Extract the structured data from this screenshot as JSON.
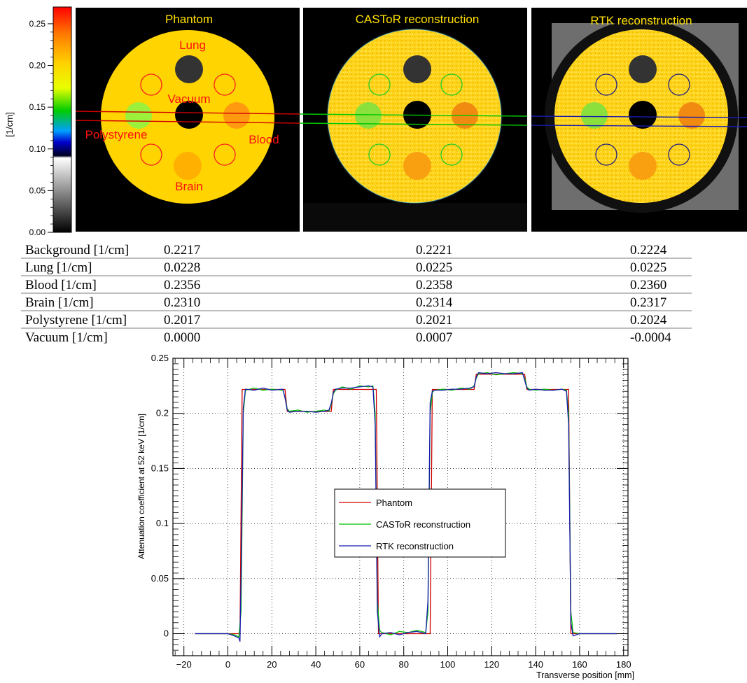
{
  "colorbar": {
    "label": "[1/cm]",
    "ticks": [
      "0.25",
      "0.20",
      "0.15",
      "0.10",
      "0.05",
      "0.00"
    ],
    "tick_values": [
      0.25,
      0.2,
      0.15,
      0.1,
      0.05,
      0.0
    ]
  },
  "panels": [
    {
      "title": "Phantom",
      "labels": {
        "lung": "Lung",
        "vacuum": "Vacuum",
        "polystyrene": "Polystyrene",
        "blood": "Blood",
        "brain": "Brain"
      },
      "ring_color": "#ff2020",
      "line_color": "#d00000"
    },
    {
      "title": "CASToR reconstruction",
      "ring_color": "#22cc22",
      "line_color": "#00c800"
    },
    {
      "title": "RTK reconstruction",
      "ring_color": "#202080",
      "line_color": "#1a1ab0"
    }
  ],
  "table": {
    "rows": [
      {
        "label": "Background [1/cm]",
        "values": [
          "0.2217",
          "0.2221",
          "0.2224"
        ]
      },
      {
        "label": "Lung [1/cm]",
        "values": [
          "0.0228",
          "0.0225",
          "0.0225"
        ]
      },
      {
        "label": "Blood [1/cm]",
        "values": [
          "0.2356",
          "0.2358",
          "0.2360"
        ]
      },
      {
        "label": "Brain [1/cm]",
        "values": [
          "0.2310",
          "0.2314",
          "0.2317"
        ]
      },
      {
        "label": "Polystyrene [1/cm]",
        "values": [
          "0.2017",
          "0.2021",
          "0.2024"
        ]
      },
      {
        "label": "Vacuum [1/cm]",
        "values": [
          "0.0000",
          "0.0007",
          "-0.0004"
        ]
      }
    ]
  },
  "chart_data": {
    "type": "line",
    "xlabel": "Transverse position [mm]",
    "ylabel": "Attenuation coefficient at 52 keV [1/cm]",
    "xlim": [
      -25,
      182
    ],
    "ylim": [
      -0.02,
      0.25
    ],
    "xticks": [
      -20,
      0,
      20,
      40,
      60,
      80,
      100,
      120,
      140,
      160,
      180
    ],
    "xtick_labels": [
      "−20",
      "0",
      "20",
      "40",
      "60",
      "80",
      "100",
      "120",
      "140",
      "160",
      "180"
    ],
    "yticks": [
      0,
      0.05,
      0.1,
      0.15,
      0.2,
      0.25
    ],
    "ytick_labels": [
      "0",
      "0.05",
      "0.1",
      "0.15",
      "0.2",
      "0.25"
    ],
    "grid": true,
    "legend_position": "center",
    "series": [
      {
        "name": "Phantom",
        "color": "#d00000",
        "x": [
          -15,
          5.5,
          6.5,
          26,
          27,
          47,
          48,
          67.5,
          68.5,
          92,
          93,
          112,
          113,
          135,
          136,
          155,
          156,
          177
        ],
        "y": [
          0,
          0,
          0.2217,
          0.2217,
          0.2017,
          0.2017,
          0.2217,
          0.2217,
          0,
          0,
          0.2217,
          0.2217,
          0.2356,
          0.2356,
          0.2217,
          0.2217,
          0,
          0
        ]
      },
      {
        "name": "CASToR reconstruction",
        "color": "#00c000",
        "x": [
          -15,
          0,
          3,
          5,
          6,
          7,
          8,
          12,
          16,
          20,
          25,
          26,
          27,
          28,
          32,
          36,
          40,
          44,
          46,
          47,
          48,
          49,
          52,
          56,
          60,
          64,
          66,
          67,
          68,
          69,
          70,
          74,
          78,
          82,
          86,
          90,
          91,
          92,
          93,
          94,
          98,
          102,
          106,
          110,
          112,
          113,
          114,
          118,
          122,
          126,
          130,
          134,
          135,
          136,
          137,
          140,
          144,
          148,
          152,
          154,
          155,
          156,
          157,
          160,
          165,
          170,
          177
        ],
        "y": [
          0,
          0,
          -0.001,
          -0.003,
          0.02,
          0.2,
          0.221,
          0.223,
          0.221,
          0.222,
          0.221,
          0.215,
          0.204,
          0.202,
          0.203,
          0.201,
          0.202,
          0.203,
          0.202,
          0.208,
          0.218,
          0.221,
          0.224,
          0.222,
          0.225,
          0.224,
          0.225,
          0.2,
          0.03,
          0.003,
          0.001,
          -0.001,
          0.002,
          0.001,
          0.003,
          0.001,
          0.02,
          0.2,
          0.219,
          0.221,
          0.222,
          0.221,
          0.223,
          0.222,
          0.225,
          0.232,
          0.236,
          0.237,
          0.235,
          0.236,
          0.237,
          0.236,
          0.232,
          0.224,
          0.222,
          0.221,
          0.222,
          0.221,
          0.222,
          0.221,
          0.2,
          0.02,
          0.001,
          0,
          0,
          0,
          0
        ]
      },
      {
        "name": "RTK reconstruction",
        "color": "#1a1ab0",
        "x": [
          -15,
          0,
          3,
          5,
          5.5,
          6,
          7,
          8,
          12,
          16,
          20,
          25,
          26,
          27,
          28,
          32,
          36,
          40,
          44,
          46,
          47,
          48,
          49,
          52,
          56,
          60,
          64,
          66,
          67,
          68,
          69,
          70,
          74,
          78,
          82,
          86,
          90,
          91,
          92,
          93,
          94,
          98,
          102,
          106,
          110,
          112,
          113,
          114,
          118,
          122,
          126,
          130,
          134,
          135,
          136,
          137,
          140,
          144,
          148,
          152,
          154,
          155,
          156,
          157,
          160,
          165,
          170,
          177
        ],
        "y": [
          0,
          0,
          -0.002,
          -0.004,
          -0.007,
          0.05,
          0.205,
          0.222,
          0.221,
          0.223,
          0.221,
          0.222,
          0.214,
          0.203,
          0.201,
          0.202,
          0.202,
          0.201,
          0.202,
          0.203,
          0.209,
          0.219,
          0.222,
          0.223,
          0.223,
          0.224,
          0.225,
          0.224,
          0.19,
          0.02,
          -0.003,
          0,
          0.001,
          -0.001,
          0.001,
          0.002,
          0,
          0.03,
          0.21,
          0.22,
          0.221,
          0.221,
          0.222,
          0.222,
          0.223,
          0.224,
          0.233,
          0.237,
          0.236,
          0.237,
          0.236,
          0.236,
          0.237,
          0.23,
          0.223,
          0.221,
          0.222,
          0.221,
          0.221,
          0.222,
          0.22,
          0.19,
          0.01,
          -0.002,
          0,
          0,
          0,
          0
        ]
      }
    ]
  }
}
